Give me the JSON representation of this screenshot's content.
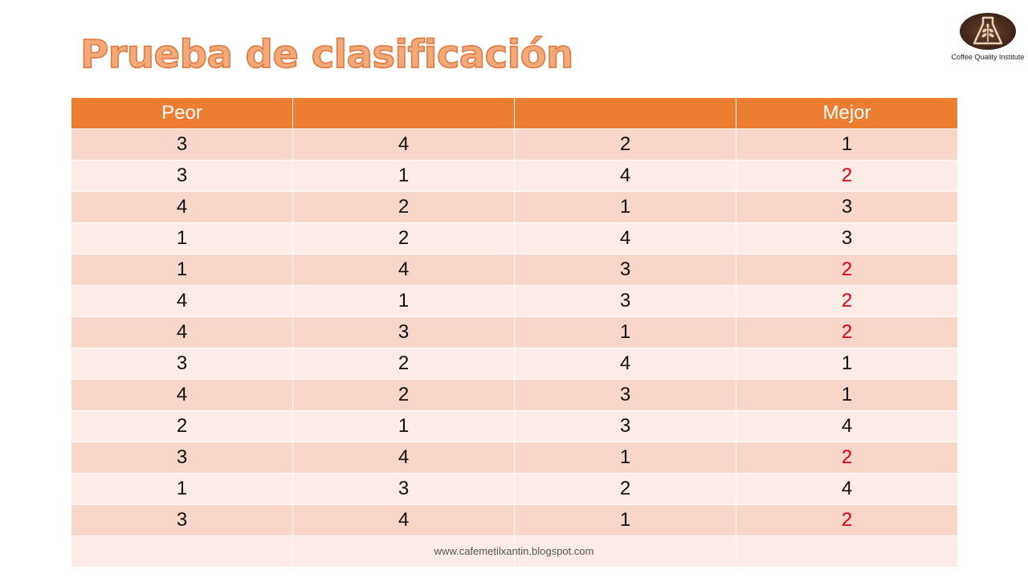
{
  "title": "Prueba de clasificación",
  "logo": {
    "icon": "coffee-plant-flask-icon",
    "text": "Coffee Quality Institute"
  },
  "table": {
    "headers": [
      "Peor",
      "",
      "",
      "Mejor"
    ],
    "rows": [
      [
        "3",
        "4",
        "2",
        "1"
      ],
      [
        "3",
        "1",
        "4",
        "2"
      ],
      [
        "4",
        "2",
        "1",
        "3"
      ],
      [
        "1",
        "2",
        "4",
        "3"
      ],
      [
        "1",
        "4",
        "3",
        "2"
      ],
      [
        "4",
        "1",
        "3",
        "2"
      ],
      [
        "4",
        "3",
        "1",
        "2"
      ],
      [
        "3",
        "2",
        "4",
        "1"
      ],
      [
        "4",
        "2",
        "3",
        "1"
      ],
      [
        "2",
        "1",
        "3",
        "4"
      ],
      [
        "3",
        "4",
        "1",
        "2"
      ],
      [
        "1",
        "3",
        "2",
        "4"
      ],
      [
        "3",
        "4",
        "1",
        "2"
      ]
    ],
    "highlight_value": "2",
    "highlight_color": "#E0000F",
    "header_color": "#ED7D31",
    "row_color_a": "#F8D7CA",
    "row_color_b": "#FCEBE6"
  },
  "footer": {
    "url": "www.cafemetilxantin.blogspot.com"
  }
}
